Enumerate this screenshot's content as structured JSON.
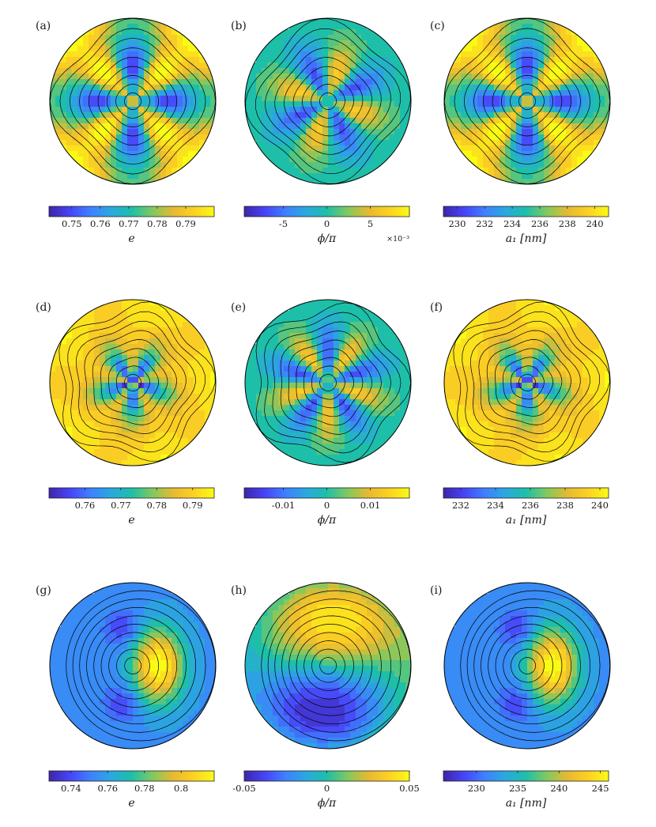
{
  "colormap": [
    "#3e26a8",
    "#4743f7",
    "#3f80fe",
    "#2aa8df",
    "#1ebfa9",
    "#7fc95f",
    "#e6b932",
    "#fdd023",
    "#f9fb15"
  ],
  "line_color": "#000000",
  "chart_data": [
    {
      "label": "(a)",
      "type": "contour",
      "variable": "e",
      "quantity_label": "e",
      "ticks": [
        "0.75",
        "0.76",
        "0.77",
        "0.78",
        "0.79"
      ],
      "tick_values": [
        0.75,
        0.76,
        0.77,
        0.78,
        0.79
      ],
      "range": [
        0.742,
        0.8
      ],
      "exponent": "",
      "pattern": {
        "kind": "quad",
        "n": 4,
        "phase": 0,
        "radial": 0.9,
        "inner": 0.35
      }
    },
    {
      "label": "(b)",
      "type": "contour",
      "variable": "phi",
      "quantity_label": "ϕ/π",
      "ticks": [
        "-5",
        "0",
        "5"
      ],
      "tick_values": [
        -5,
        0,
        5
      ],
      "range": [
        -9.5,
        9.5
      ],
      "exponent": "×10⁻³",
      "pattern": {
        "kind": "lobes",
        "n": 4,
        "phase": 0.3,
        "radial": 1.0,
        "inner": 0.4
      }
    },
    {
      "label": "(c)",
      "type": "contour",
      "variable": "a1",
      "quantity_label": "a₁ [nm]",
      "ticks": [
        "230",
        "232",
        "234",
        "236",
        "238",
        "240"
      ],
      "tick_values": [
        230,
        232,
        234,
        236,
        238,
        240
      ],
      "range": [
        229,
        241
      ],
      "exponent": "",
      "pattern": {
        "kind": "quad",
        "n": 4,
        "phase": 0,
        "radial": 0.9,
        "inner": 0.35
      }
    },
    {
      "label": "(d)",
      "type": "contour",
      "variable": "e",
      "quantity_label": "e",
      "ticks": [
        "0.76",
        "0.77",
        "0.78",
        "0.79"
      ],
      "tick_values": [
        0.76,
        0.77,
        0.78,
        0.79
      ],
      "range": [
        0.75,
        0.796
      ],
      "exponent": "",
      "pattern": {
        "kind": "flower",
        "n": 5,
        "phase": 0.3,
        "radial": 1.0,
        "inner": 0.4
      }
    },
    {
      "label": "(e)",
      "type": "contour",
      "variable": "phi",
      "quantity_label": "ϕ/π",
      "ticks": [
        "-0.01",
        "0",
        "0.01"
      ],
      "tick_values": [
        -0.01,
        0,
        0.01
      ],
      "range": [
        -0.019,
        0.019
      ],
      "exponent": "",
      "pattern": {
        "kind": "lobes",
        "n": 5,
        "phase": 0.0,
        "radial": 1.0,
        "inner": 0.35
      }
    },
    {
      "label": "(f)",
      "type": "contour",
      "variable": "a1",
      "quantity_label": "a₁ [nm]",
      "ticks": [
        "232",
        "234",
        "236",
        "238",
        "240"
      ],
      "tick_values": [
        232,
        234,
        236,
        238,
        240
      ],
      "range": [
        231,
        240.5
      ],
      "exponent": "",
      "pattern": {
        "kind": "flower",
        "n": 5,
        "phase": 0.3,
        "radial": 1.0,
        "inner": 0.4
      }
    },
    {
      "label": "(g)",
      "type": "contour",
      "variable": "e",
      "quantity_label": "e",
      "ticks": [
        "0.74",
        "0.76",
        "0.78",
        "0.8"
      ],
      "tick_values": [
        0.74,
        0.76,
        0.78,
        0.8
      ],
      "range": [
        0.728,
        0.818
      ],
      "exponent": "",
      "pattern": {
        "kind": "dipole",
        "n": 1,
        "phase": 0,
        "radial": 1.0,
        "inner": 0.3
      }
    },
    {
      "label": "(h)",
      "type": "contour",
      "variable": "phi",
      "quantity_label": "ϕ/π",
      "ticks": [
        "-0.05",
        "0",
        "0.05"
      ],
      "tick_values": [
        -0.05,
        0,
        0.05
      ],
      "range": [
        -0.05,
        0.05
      ],
      "exponent": "",
      "pattern": {
        "kind": "swirl",
        "n": 1,
        "phase": 0,
        "radial": 1.0,
        "inner": 0.3
      }
    },
    {
      "label": "(i)",
      "type": "contour",
      "variable": "a1",
      "quantity_label": "a₁ [nm]",
      "ticks": [
        "230",
        "235",
        "240",
        "245"
      ],
      "tick_values": [
        230,
        235,
        240,
        245
      ],
      "range": [
        226,
        246
      ],
      "exponent": "",
      "pattern": {
        "kind": "dipole",
        "n": 1,
        "phase": 0,
        "radial": 1.0,
        "inner": 0.3
      }
    }
  ]
}
